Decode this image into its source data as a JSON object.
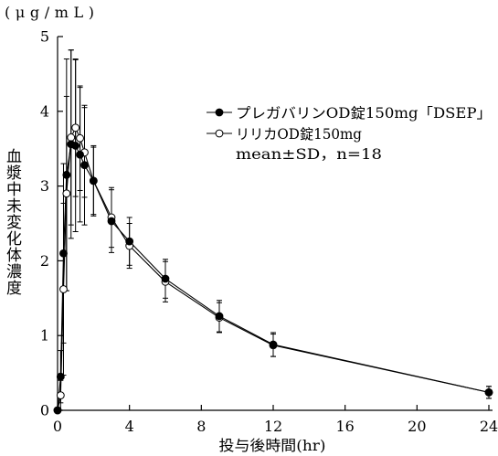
{
  "chart_data": {
    "type": "line",
    "unit_label": "(μg/mL)",
    "ylabel": "血漿中未変化体濃度",
    "xlabel": "投与後時間(hr)",
    "xlim": [
      0,
      24
    ],
    "ylim": [
      0,
      5
    ],
    "xticks": [
      0,
      4,
      8,
      12,
      16,
      20,
      24
    ],
    "yticks": [
      0,
      1,
      2,
      3,
      4,
      5
    ],
    "grid": false,
    "legend_position": "top-right",
    "legend_note": "mean±SD，n=18",
    "x": [
      0,
      0.17,
      0.33,
      0.5,
      0.75,
      1,
      1.25,
      1.5,
      2,
      3,
      4,
      6,
      9,
      12,
      24
    ],
    "series": [
      {
        "name": "プレガバリンOD錠150mg「DSEP」",
        "marker": "filled-circle",
        "color": "#000000",
        "values": [
          0,
          0.45,
          2.1,
          3.15,
          3.56,
          3.54,
          3.42,
          3.28,
          3.07,
          2.53,
          2.26,
          1.76,
          1.26,
          0.88,
          0.24
        ],
        "sd": [
          0,
          0.35,
          1.2,
          1.55,
          1.26,
          1.15,
          0.9,
          0.8,
          0.47,
          0.42,
          0.32,
          0.26,
          0.21,
          0.16,
          0.08
        ]
      },
      {
        "name": "リリカOD錠150mg",
        "marker": "open-circle",
        "color": "#000000",
        "values": [
          0,
          0.2,
          1.62,
          2.9,
          3.65,
          3.78,
          3.64,
          3.45,
          3.07,
          2.58,
          2.2,
          1.72,
          1.24,
          0.87,
          0.24
        ],
        "sd": [
          0,
          0.2,
          1.15,
          1.3,
          1.17,
          0.92,
          0.7,
          0.6,
          0.45,
          0.4,
          0.3,
          0.27,
          0.2,
          0.15,
          0.08
        ]
      }
    ]
  }
}
